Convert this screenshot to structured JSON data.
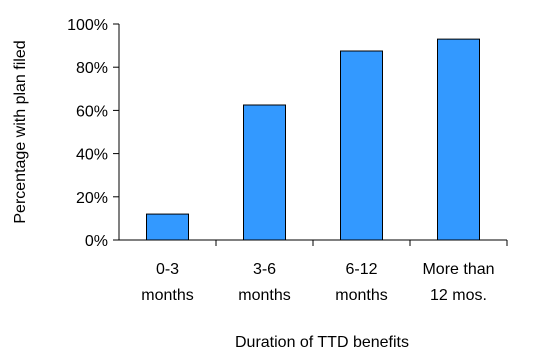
{
  "chart_data": {
    "type": "bar",
    "categories": [
      [
        "0-3",
        "months"
      ],
      [
        "3-6",
        "months"
      ],
      [
        "6-12",
        "months"
      ],
      [
        "More than",
        "12 mos."
      ]
    ],
    "values": [
      12,
      62.5,
      87.5,
      93
    ],
    "xlabel": "Duration of TTD benefits",
    "ylabel": "Percentage with plan filed",
    "ylim": [
      0,
      100
    ],
    "yticks": [
      "0%",
      "20%",
      "40%",
      "60%",
      "80%",
      "100%"
    ],
    "grid": false,
    "legend": "none",
    "bar_color": "#3399ff",
    "bar_edge_color": "#000000"
  }
}
